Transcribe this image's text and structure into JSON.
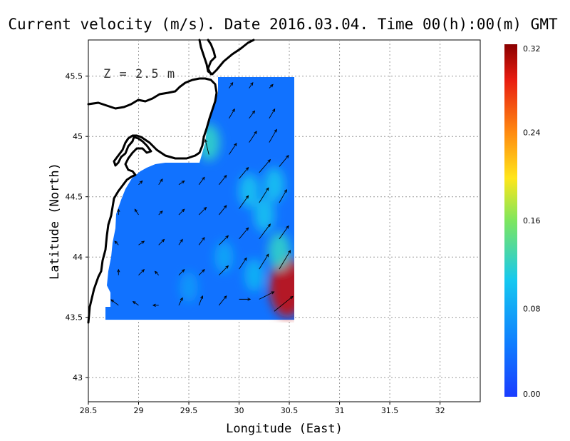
{
  "chart_data": {
    "type": "heatmap",
    "title": "Current velocity (m/s). Date 2016.03.04. Time 00(h):00(m) GMT",
    "annotation": "Z = 2.5 m",
    "xlabel": "Longitude (East)",
    "ylabel": "Latitude (North)",
    "xlim": [
      28.5,
      32.4
    ],
    "ylim": [
      42.8,
      45.8
    ],
    "xticks": [
      "28.5",
      "29",
      "29.5",
      "30",
      "30.5",
      "31",
      "31.5",
      "32"
    ],
    "yticks": [
      "43",
      "43.5",
      "44",
      "44.5",
      "45",
      "45.5"
    ],
    "grid": true,
    "colorbar": {
      "ticks": [
        "0.00",
        "0.08",
        "0.16",
        "0.24",
        "0.32"
      ],
      "range": [
        0,
        0.32
      ],
      "colors": [
        "#1a3cff",
        "#0f7dff",
        "#15c8f0",
        "#7ee65e",
        "#ffe61a",
        "#ff8a10",
        "#e81c10",
        "#8a0000"
      ]
    },
    "field": {
      "lon_range": [
        28.65,
        30.55
      ],
      "lat_range": [
        43.48,
        45.5
      ],
      "background_speed": 0.04,
      "max_speed": 0.32,
      "features": [
        {
          "lon": 30.48,
          "lat": 43.75,
          "speed": 0.3
        },
        {
          "lon": 30.4,
          "lat": 44.05,
          "speed": 0.12
        },
        {
          "lon": 30.25,
          "lat": 44.35,
          "speed": 0.1
        },
        {
          "lon": 30.1,
          "lat": 44.55,
          "speed": 0.1
        },
        {
          "lon": 30.35,
          "lat": 44.6,
          "speed": 0.1
        },
        {
          "lon": 29.7,
          "lat": 44.95,
          "speed": 0.12
        },
        {
          "lon": 29.85,
          "lat": 44.0,
          "speed": 0.08
        },
        {
          "lon": 30.15,
          "lat": 43.85,
          "speed": 0.09
        },
        {
          "lon": 29.5,
          "lat": 43.75,
          "speed": 0.07
        }
      ]
    },
    "vectors": [
      {
        "lon": 28.8,
        "lat": 43.6,
        "u": -0.04,
        "v": 0.03
      },
      {
        "lon": 29.0,
        "lat": 43.6,
        "u": -0.03,
        "v": 0.02
      },
      {
        "lon": 29.2,
        "lat": 43.6,
        "u": -0.03,
        "v": 0.0
      },
      {
        "lon": 29.4,
        "lat": 43.6,
        "u": 0.02,
        "v": 0.04
      },
      {
        "lon": 29.6,
        "lat": 43.6,
        "u": 0.02,
        "v": 0.05
      },
      {
        "lon": 29.8,
        "lat": 43.6,
        "u": 0.04,
        "v": 0.05
      },
      {
        "lon": 30.0,
        "lat": 43.65,
        "u": 0.06,
        "v": 0.0
      },
      {
        "lon": 30.2,
        "lat": 43.65,
        "u": 0.08,
        "v": 0.04
      },
      {
        "lon": 30.35,
        "lat": 43.55,
        "u": 0.1,
        "v": 0.08
      },
      {
        "lon": 28.8,
        "lat": 43.85,
        "u": 0.0,
        "v": 0.03
      },
      {
        "lon": 29.0,
        "lat": 43.85,
        "u": 0.03,
        "v": 0.03
      },
      {
        "lon": 29.2,
        "lat": 43.85,
        "u": -0.02,
        "v": 0.02
      },
      {
        "lon": 29.4,
        "lat": 43.85,
        "u": 0.03,
        "v": 0.03
      },
      {
        "lon": 29.6,
        "lat": 43.85,
        "u": 0.03,
        "v": 0.03
      },
      {
        "lon": 29.8,
        "lat": 43.85,
        "u": 0.05,
        "v": 0.05
      },
      {
        "lon": 30.0,
        "lat": 43.9,
        "u": 0.04,
        "v": 0.06
      },
      {
        "lon": 30.2,
        "lat": 43.9,
        "u": 0.05,
        "v": 0.08
      },
      {
        "lon": 30.4,
        "lat": 43.9,
        "u": 0.06,
        "v": 0.1
      },
      {
        "lon": 28.8,
        "lat": 44.1,
        "u": -0.02,
        "v": 0.02
      },
      {
        "lon": 29.0,
        "lat": 44.1,
        "u": 0.03,
        "v": 0.02
      },
      {
        "lon": 29.2,
        "lat": 44.1,
        "u": 0.03,
        "v": 0.03
      },
      {
        "lon": 29.4,
        "lat": 44.1,
        "u": 0.02,
        "v": 0.03
      },
      {
        "lon": 29.6,
        "lat": 44.1,
        "u": 0.03,
        "v": 0.04
      },
      {
        "lon": 29.8,
        "lat": 44.1,
        "u": 0.05,
        "v": 0.05
      },
      {
        "lon": 30.0,
        "lat": 44.15,
        "u": 0.05,
        "v": 0.06
      },
      {
        "lon": 30.2,
        "lat": 44.15,
        "u": 0.06,
        "v": 0.08
      },
      {
        "lon": 30.4,
        "lat": 44.15,
        "u": 0.05,
        "v": 0.07
      },
      {
        "lon": 28.8,
        "lat": 44.35,
        "u": 0.0,
        "v": 0.03
      },
      {
        "lon": 29.0,
        "lat": 44.35,
        "u": -0.02,
        "v": 0.03
      },
      {
        "lon": 29.2,
        "lat": 44.35,
        "u": 0.02,
        "v": 0.02
      },
      {
        "lon": 29.4,
        "lat": 44.35,
        "u": 0.03,
        "v": 0.03
      },
      {
        "lon": 29.6,
        "lat": 44.35,
        "u": 0.04,
        "v": 0.04
      },
      {
        "lon": 29.8,
        "lat": 44.35,
        "u": 0.04,
        "v": 0.05
      },
      {
        "lon": 30.0,
        "lat": 44.4,
        "u": 0.05,
        "v": 0.07
      },
      {
        "lon": 30.2,
        "lat": 44.45,
        "u": 0.05,
        "v": 0.08
      },
      {
        "lon": 30.4,
        "lat": 44.45,
        "u": 0.04,
        "v": 0.07
      },
      {
        "lon": 29.0,
        "lat": 44.6,
        "u": 0.02,
        "v": 0.02
      },
      {
        "lon": 29.2,
        "lat": 44.6,
        "u": 0.02,
        "v": 0.03
      },
      {
        "lon": 29.4,
        "lat": 44.6,
        "u": 0.03,
        "v": 0.02
      },
      {
        "lon": 29.6,
        "lat": 44.6,
        "u": 0.03,
        "v": 0.04
      },
      {
        "lon": 29.8,
        "lat": 44.6,
        "u": 0.04,
        "v": 0.05
      },
      {
        "lon": 30.0,
        "lat": 44.65,
        "u": 0.05,
        "v": 0.06
      },
      {
        "lon": 30.2,
        "lat": 44.7,
        "u": 0.06,
        "v": 0.07
      },
      {
        "lon": 30.4,
        "lat": 44.75,
        "u": 0.05,
        "v": 0.06
      },
      {
        "lon": 29.7,
        "lat": 44.85,
        "u": -0.02,
        "v": 0.08
      },
      {
        "lon": 29.9,
        "lat": 44.85,
        "u": 0.04,
        "v": 0.06
      },
      {
        "lon": 30.1,
        "lat": 44.95,
        "u": 0.04,
        "v": 0.06
      },
      {
        "lon": 30.3,
        "lat": 44.95,
        "u": 0.04,
        "v": 0.07
      },
      {
        "lon": 29.9,
        "lat": 45.15,
        "u": 0.03,
        "v": 0.05
      },
      {
        "lon": 30.1,
        "lat": 45.15,
        "u": 0.03,
        "v": 0.04
      },
      {
        "lon": 30.3,
        "lat": 45.15,
        "u": 0.03,
        "v": 0.05
      },
      {
        "lon": 29.9,
        "lat": 45.4,
        "u": 0.02,
        "v": 0.03
      },
      {
        "lon": 30.1,
        "lat": 45.4,
        "u": 0.02,
        "v": 0.03
      },
      {
        "lon": 30.3,
        "lat": 45.4,
        "u": 0.02,
        "v": 0.02
      }
    ]
  }
}
